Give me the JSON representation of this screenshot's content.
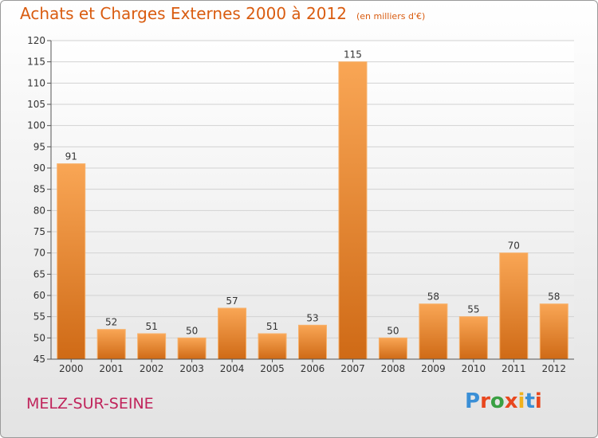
{
  "header": {
    "title": "Achats et Charges Externes 2000 à 2012",
    "subtitle": "(en milliers d'€)"
  },
  "footer": {
    "commune": "MELZ-SUR-SEINE",
    "logo": "Proxiti",
    "logo_colors": [
      "#3a8fd6",
      "#e8471e",
      "#3aa043",
      "#e8471e",
      "#f0b21e",
      "#3a8fd6",
      "#e8471e"
    ]
  },
  "chart_data": {
    "type": "bar",
    "title": "Achats et Charges Externes 2000 à 2012",
    "subtitle": "(en milliers d'€)",
    "xlabel": "",
    "ylabel": "",
    "categories": [
      "2000",
      "2001",
      "2002",
      "2003",
      "2004",
      "2005",
      "2006",
      "2007",
      "2008",
      "2009",
      "2010",
      "2011",
      "2012"
    ],
    "values": [
      91,
      52,
      51,
      50,
      57,
      51,
      53,
      115,
      50,
      58,
      55,
      70,
      58
    ],
    "ylim": [
      45,
      120
    ],
    "yticks": [
      45,
      50,
      55,
      60,
      65,
      70,
      75,
      80,
      85,
      90,
      95,
      100,
      105,
      110,
      115,
      120
    ],
    "grid": true,
    "bar_color_top": "#f9a655",
    "bar_color_bottom": "#cf6a16"
  }
}
